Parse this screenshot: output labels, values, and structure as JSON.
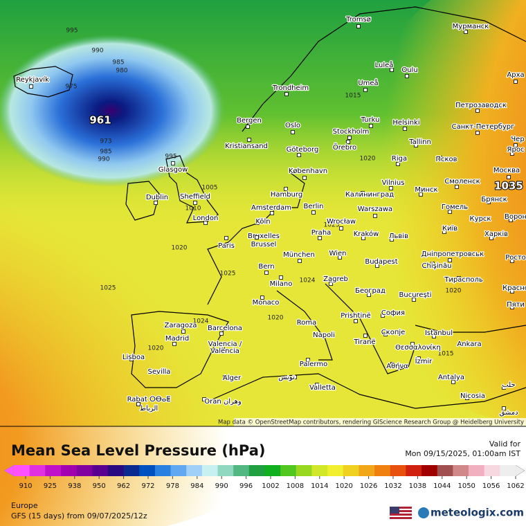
{
  "map": {
    "cities": [
      "Tromsø",
      "Мурманск",
      "Reykjavík",
      "Luleå",
      "Oulu",
      "Арха",
      "Trondheim",
      "Umeå",
      "Петрозаводск",
      "Bergen",
      "Oslo",
      "Turku",
      "Helsinki",
      "Санкт-Петербург",
      "Stockholm",
      "Kristiansand",
      "Göteborg",
      "Örebro",
      "Tallinn",
      "Чер",
      "Ярос",
      "Glasgow",
      "Riga",
      "Псков",
      "Москва",
      "København",
      "Vilnius",
      "Смоленск",
      "Dublin",
      "Sheffield",
      "Hamburg",
      "Калининград",
      "Минск",
      "Брянск",
      "Amsterdam",
      "Berlin",
      "Warszawa",
      "Гомель",
      "Курск",
      "Ворон",
      "London",
      "Köln",
      "Wrocław",
      "Київ",
      "Харків",
      "Bruxelles",
      "Brussel",
      "Paris",
      "Praha",
      "Kraków",
      "Львів",
      "Дніпропетровськ",
      "Росто",
      "München",
      "Wien",
      "Chişinău",
      "Bern",
      "Budapest",
      "Тирасполь",
      "Milano",
      "Zagreb",
      "Београд",
      "Красно",
      "Monaco",
      "București",
      "Пяти",
      "Prishtinë",
      "София",
      "Zaragoza",
      "Barcelona",
      "Roma",
      "Istanbul",
      "Madrid",
      "Napoli",
      "Скопје",
      "Tiranë",
      "Θεσσαλονίκη",
      "Ankara",
      "Valencia /",
      "València",
      "Lisboa",
      "İzmir",
      "Sevilla",
      "Palermo",
      "Αθήνα",
      "Alger",
      "تونس",
      "Valletta",
      "Antalya",
      "Rabat ⵔⴱⴰⵟ",
      "الرباط",
      "Oran وهران",
      "Nicosia",
      "حلب",
      "دمشق"
    ],
    "isobar_labels": [
      "995",
      "990",
      "985",
      "980",
      "975",
      "973",
      "985",
      "990",
      "995",
      "1005",
      "1010",
      "1020",
      "1025",
      "1025",
      "1020",
      "1024",
      "1020",
      "1025",
      "1024",
      "1015",
      "1020",
      "1020",
      "1015"
    ],
    "low_center": "961",
    "high_center": "1035",
    "attribution": "Map data © OpenStreetMap contributors, rendering GIScience Research Group @ Heidelberg University"
  },
  "legend": {
    "title": "Mean Sea Level Pressure (hPa)",
    "valid_label": "Valid for",
    "valid_time": "Mon 09/15/2025, 01:00am IST",
    "ticks": [
      "910",
      "925",
      "938",
      "950",
      "962",
      "972",
      "978",
      "984",
      "990",
      "996",
      "1002",
      "1008",
      "1014",
      "1020",
      "1026",
      "1032",
      "1038",
      "1044",
      "1050",
      "1056",
      "1062"
    ],
    "colors": [
      "#ff50ff",
      "#e030e0",
      "#c010c8",
      "#a000b0",
      "#8000a0",
      "#5a0090",
      "#2a0a80",
      "#0a2a90",
      "#0050c0",
      "#2a80e0",
      "#60a8f0",
      "#a0d0f8",
      "#c8f0f0",
      "#90d8c0",
      "#50b880",
      "#20a040",
      "#10b020",
      "#50c820",
      "#98d820",
      "#d0e828",
      "#f0f030",
      "#f0d020",
      "#f0a818",
      "#f08010",
      "#e85010",
      "#d02010",
      "#a00000",
      "#a05050",
      "#d08888",
      "#f0b0c0",
      "#f8d8e0",
      "#eeeeee"
    ],
    "region": "Europe",
    "model": "GFS (15 days) from 09/07/2025/12z",
    "logo": "meteologix.com"
  }
}
